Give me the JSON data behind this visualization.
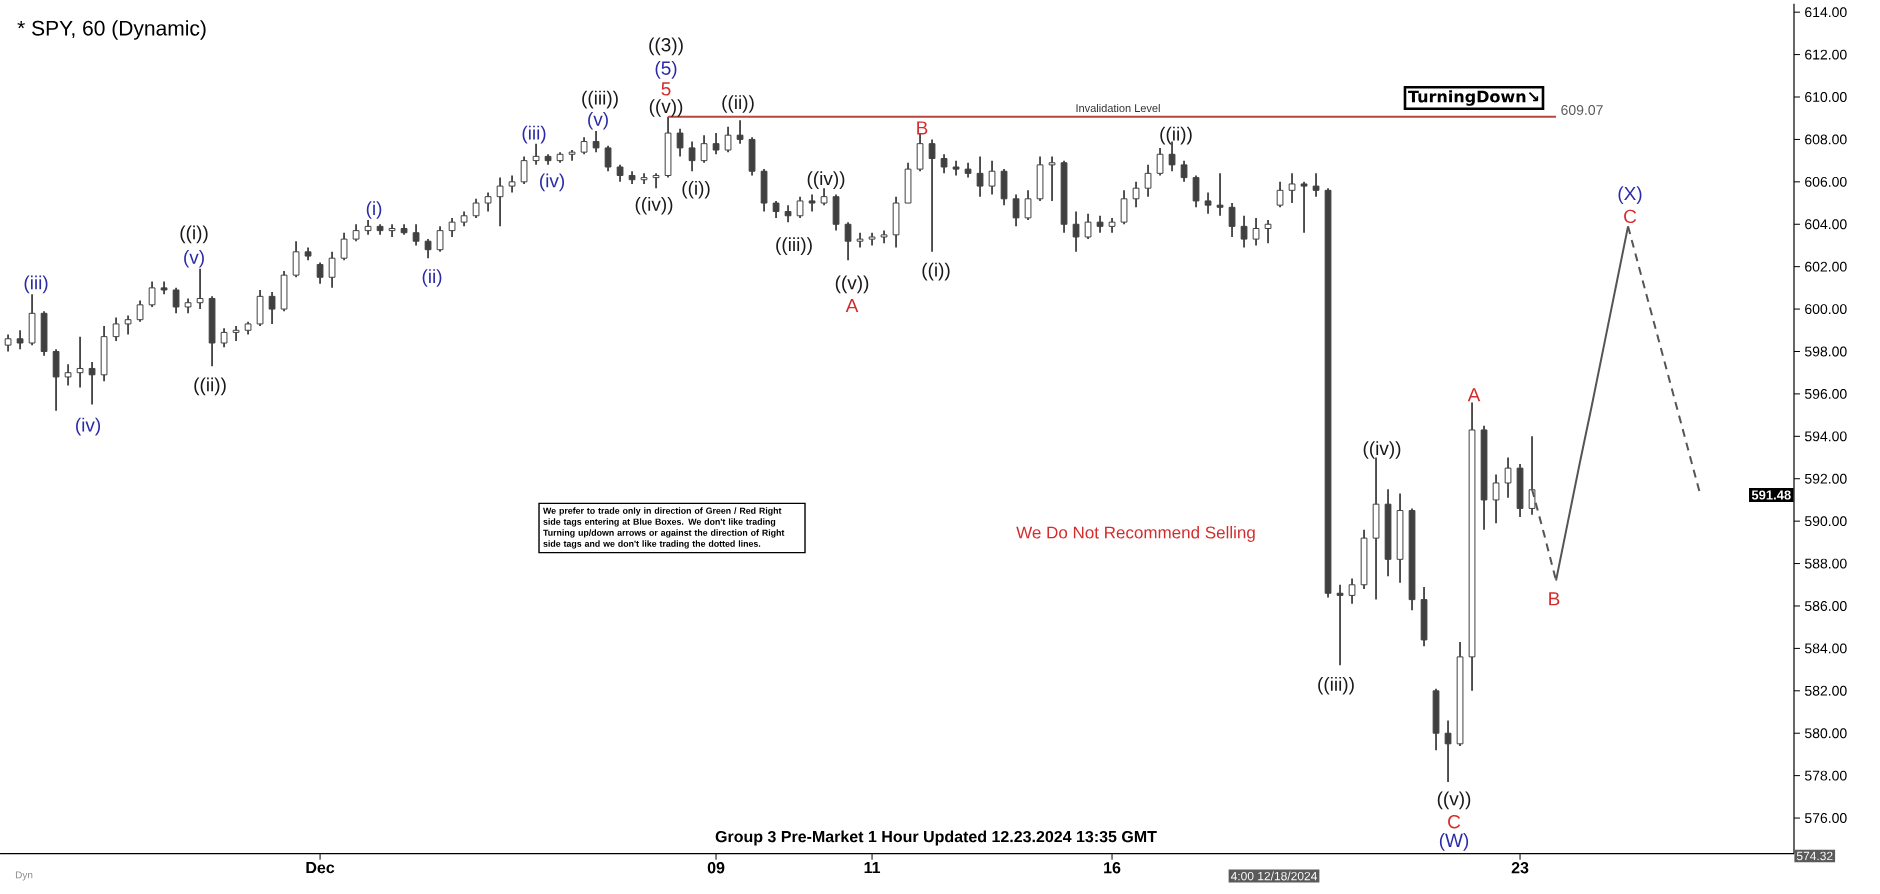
{
  "chart_data": {
    "type": "candlestick",
    "title": "* SPY, 60 (Dynamic)",
    "categories": [
      null,
      null,
      null,
      null,
      null,
      null,
      null,
      null,
      null,
      null,
      null,
      null,
      null,
      null,
      null,
      null,
      null,
      null,
      null,
      null,
      null,
      null,
      null,
      null,
      null,
      null,
      "Dec",
      null,
      null,
      null,
      null,
      null,
      null,
      null,
      null,
      null,
      null,
      null,
      null,
      null,
      null,
      null,
      null,
      null,
      null,
      null,
      null,
      null,
      null,
      null,
      null,
      null,
      null,
      null,
      null,
      null,
      null,
      null,
      null,
      "09",
      null,
      null,
      null,
      null,
      null,
      null,
      null,
      null,
      null,
      null,
      null,
      null,
      "11",
      null,
      null,
      null,
      null,
      null,
      null,
      null,
      null,
      null,
      null,
      null,
      null,
      null,
      null,
      null,
      null,
      null,
      null,
      null,
      "16",
      null,
      null,
      null,
      null,
      null,
      null,
      null,
      null,
      null,
      null,
      null,
      null,
      null,
      null,
      null,
      null,
      null,
      null,
      null,
      null,
      null,
      null,
      null,
      null,
      null,
      null,
      null,
      null,
      null,
      null,
      null,
      null,
      null,
      "23",
      null,
      null,
      null,
      null,
      null,
      null,
      null,
      null,
      null,
      null,
      null,
      null,
      null,
      null,
      null,
      null,
      null,
      null,
      null,
      null,
      null,
      null
    ],
    "ohlc": [
      [
        598.3,
        598.8,
        598.0,
        598.6
      ],
      [
        598.6,
        599.0,
        598.1,
        598.4
      ],
      [
        598.4,
        600.7,
        598.3,
        599.8
      ],
      [
        599.8,
        599.9,
        597.8,
        598.0
      ],
      [
        598.0,
        598.1,
        595.2,
        596.8
      ],
      [
        596.8,
        597.4,
        596.4,
        597.0
      ],
      [
        597.0,
        598.7,
        596.3,
        597.2
      ],
      [
        597.2,
        597.5,
        595.5,
        596.9
      ],
      [
        596.9,
        599.2,
        596.6,
        598.7
      ],
      [
        598.7,
        599.6,
        598.5,
        599.3
      ],
      [
        599.3,
        599.7,
        598.8,
        599.5
      ],
      [
        599.5,
        600.4,
        599.4,
        600.2
      ],
      [
        600.2,
        601.3,
        600.1,
        601.0
      ],
      [
        601.0,
        601.3,
        600.7,
        600.9
      ],
      [
        600.9,
        601.0,
        599.8,
        600.1
      ],
      [
        600.1,
        600.5,
        599.8,
        600.3
      ],
      [
        600.3,
        601.9,
        600.0,
        600.5
      ],
      [
        600.5,
        600.6,
        597.3,
        598.4
      ],
      [
        598.4,
        599.1,
        598.2,
        598.9
      ],
      [
        598.9,
        599.2,
        598.5,
        599.0
      ],
      [
        599.0,
        599.4,
        598.8,
        599.3
      ],
      [
        599.3,
        600.9,
        599.2,
        600.6
      ],
      [
        600.6,
        600.8,
        599.3,
        600.0
      ],
      [
        600.0,
        601.8,
        599.9,
        601.6
      ],
      [
        601.6,
        603.2,
        601.5,
        602.7
      ],
      [
        602.7,
        602.9,
        602.3,
        602.5
      ],
      [
        602.1,
        602.2,
        601.2,
        601.5
      ],
      [
        601.5,
        602.7,
        601.0,
        602.4
      ],
      [
        602.4,
        603.6,
        602.3,
        603.3
      ],
      [
        603.3,
        604.0,
        603.2,
        603.7
      ],
      [
        603.7,
        604.2,
        603.5,
        603.9
      ],
      [
        603.9,
        604.0,
        603.5,
        603.7
      ],
      [
        603.7,
        604.0,
        603.4,
        603.8
      ],
      [
        603.8,
        604.0,
        603.5,
        603.6
      ],
      [
        603.6,
        604.0,
        603.0,
        603.2
      ],
      [
        603.2,
        603.3,
        602.4,
        602.8
      ],
      [
        602.8,
        603.9,
        602.7,
        603.7
      ],
      [
        603.7,
        604.3,
        603.4,
        604.1
      ],
      [
        604.1,
        604.6,
        603.9,
        604.4
      ],
      [
        604.4,
        605.2,
        604.3,
        605.0
      ],
      [
        605.0,
        605.5,
        604.6,
        605.3
      ],
      [
        605.3,
        606.2,
        603.9,
        605.8
      ],
      [
        605.8,
        606.3,
        605.5,
        606.0
      ],
      [
        606.0,
        607.2,
        605.9,
        607.0
      ],
      [
        607.0,
        607.8,
        606.8,
        607.2
      ],
      [
        607.2,
        607.3,
        606.8,
        607.0
      ],
      [
        607.0,
        607.4,
        606.9,
        607.3
      ],
      [
        607.3,
        607.5,
        607.0,
        607.4
      ],
      [
        607.4,
        608.1,
        607.3,
        607.9
      ],
      [
        607.9,
        608.4,
        607.4,
        607.6
      ],
      [
        607.6,
        607.7,
        606.5,
        606.7
      ],
      [
        606.7,
        606.8,
        606.0,
        606.3
      ],
      [
        606.3,
        606.5,
        605.9,
        606.1
      ],
      [
        606.1,
        606.4,
        605.9,
        606.2
      ],
      [
        606.2,
        606.4,
        605.7,
        606.3
      ],
      [
        606.3,
        609.07,
        606.2,
        608.3
      ],
      [
        608.3,
        608.5,
        607.2,
        607.6
      ],
      [
        607.6,
        607.9,
        606.5,
        607.0
      ],
      [
        607.0,
        608.2,
        606.9,
        607.8
      ],
      [
        607.8,
        608.3,
        607.3,
        607.5
      ],
      [
        607.5,
        608.6,
        607.4,
        608.2
      ],
      [
        608.2,
        608.9,
        607.8,
        608.0
      ],
      [
        608.0,
        608.1,
        606.3,
        606.5
      ],
      [
        606.5,
        606.6,
        604.6,
        605.0
      ],
      [
        605.0,
        605.1,
        604.3,
        604.6
      ],
      [
        604.6,
        604.9,
        604.1,
        604.4
      ],
      [
        604.4,
        605.3,
        604.3,
        605.1
      ],
      [
        605.1,
        605.4,
        604.6,
        605.0
      ],
      [
        605.0,
        605.7,
        604.9,
        605.3
      ],
      [
        605.3,
        605.4,
        603.7,
        604.0
      ],
      [
        604.0,
        604.1,
        602.3,
        603.2
      ],
      [
        603.2,
        603.6,
        602.9,
        603.3
      ],
      [
        603.3,
        603.6,
        603.0,
        603.4
      ],
      [
        603.4,
        603.7,
        603.1,
        603.5
      ],
      [
        603.5,
        605.3,
        602.9,
        605.0
      ],
      [
        605.0,
        606.9,
        605.0,
        606.6
      ],
      [
        606.6,
        608.3,
        606.5,
        607.8
      ],
      [
        607.8,
        608.0,
        602.7,
        607.1
      ],
      [
        607.1,
        607.3,
        606.4,
        606.7
      ],
      [
        606.7,
        607.0,
        606.3,
        606.6
      ],
      [
        606.6,
        606.9,
        606.2,
        606.4
      ],
      [
        606.4,
        607.2,
        605.3,
        605.8
      ],
      [
        605.8,
        607.0,
        605.4,
        606.5
      ],
      [
        606.5,
        606.6,
        604.9,
        605.2
      ],
      [
        605.2,
        605.4,
        603.9,
        604.3
      ],
      [
        604.3,
        605.6,
        604.2,
        605.2
      ],
      [
        605.2,
        607.2,
        605.1,
        606.8
      ],
      [
        606.8,
        607.2,
        605.1,
        606.9
      ],
      [
        606.9,
        607.0,
        603.6,
        604.0
      ],
      [
        604.0,
        604.6,
        602.7,
        603.4
      ],
      [
        603.4,
        604.5,
        603.3,
        604.1
      ],
      [
        604.1,
        604.4,
        603.6,
        603.9
      ],
      [
        603.9,
        604.3,
        603.6,
        604.1
      ],
      [
        604.1,
        605.6,
        604.0,
        605.2
      ],
      [
        605.2,
        606.0,
        604.8,
        605.7
      ],
      [
        605.7,
        606.8,
        605.3,
        606.4
      ],
      [
        606.4,
        607.6,
        606.3,
        607.3
      ],
      [
        607.3,
        607.9,
        606.5,
        606.8
      ],
      [
        606.8,
        607.0,
        606.0,
        606.2
      ],
      [
        606.2,
        606.3,
        604.8,
        605.1
      ],
      [
        605.1,
        605.5,
        604.5,
        604.9
      ],
      [
        604.9,
        606.4,
        604.4,
        604.8
      ],
      [
        604.8,
        605.0,
        603.4,
        603.9
      ],
      [
        603.9,
        604.4,
        602.9,
        603.3
      ],
      [
        603.3,
        604.3,
        603.0,
        603.8
      ],
      [
        603.8,
        604.2,
        603.1,
        604.0
      ],
      [
        604.9,
        606.0,
        604.8,
        605.6
      ],
      [
        605.6,
        606.4,
        605.0,
        605.9
      ],
      [
        605.9,
        606.0,
        603.6,
        605.8
      ],
      [
        605.8,
        606.4,
        605.3,
        605.6
      ],
      [
        605.6,
        605.7,
        586.4,
        586.6
      ],
      [
        586.6,
        587.0,
        583.2,
        586.5
      ],
      [
        586.5,
        587.3,
        586.1,
        587.0
      ],
      [
        587.0,
        589.6,
        586.8,
        589.2
      ],
      [
        589.2,
        593.0,
        586.3,
        590.8
      ],
      [
        590.8,
        591.5,
        587.4,
        588.2
      ],
      [
        588.2,
        591.3,
        587.1,
        590.5
      ],
      [
        590.5,
        590.6,
        585.8,
        586.3
      ],
      [
        586.3,
        586.9,
        584.1,
        584.4
      ],
      [
        582.0,
        582.1,
        579.2,
        580.0
      ],
      [
        580.0,
        580.6,
        577.7,
        579.5
      ],
      [
        579.5,
        584.3,
        579.4,
        583.6
      ],
      [
        583.6,
        595.6,
        582.0,
        594.3
      ],
      [
        594.3,
        594.5,
        589.6,
        591.0
      ],
      [
        591.0,
        592.2,
        589.9,
        591.8
      ],
      [
        591.8,
        593.0,
        591.1,
        592.5
      ],
      [
        592.5,
        592.7,
        590.2,
        590.6
      ],
      [
        590.6,
        594.0,
        590.3,
        591.48
      ],
      null,
      null,
      null,
      null,
      null,
      null,
      null,
      null,
      null,
      null,
      null,
      null,
      null,
      null,
      null,
      null,
      null,
      null,
      null,
      null,
      null
    ],
    "color": "#404040",
    "series": [
      {
        "type": "line",
        "color": "#b5473f",
        "line_style": "solid",
        "values": [
          null,
          null,
          null,
          null,
          null,
          null,
          null,
          null,
          null,
          null,
          null,
          null,
          null,
          null,
          null,
          null,
          null,
          null,
          null,
          null,
          null,
          null,
          null,
          null,
          null,
          null,
          null,
          null,
          null,
          null,
          null,
          null,
          null,
          null,
          null,
          null,
          null,
          null,
          null,
          null,
          null,
          null,
          null,
          null,
          null,
          null,
          null,
          null,
          null,
          null,
          null,
          null,
          null,
          null,
          null,
          609.07,
          609.07,
          609.07,
          609.07,
          609.07,
          609.07,
          609.07,
          609.07,
          609.07,
          609.07,
          609.07,
          609.07,
          609.07,
          609.07,
          609.07,
          609.07,
          609.07,
          609.07,
          609.07,
          609.07,
          609.07,
          609.07,
          609.07,
          609.07,
          609.07,
          609.07,
          609.07,
          609.07,
          609.07,
          609.07,
          609.07,
          609.07,
          609.07,
          609.07,
          609.07,
          609.07,
          609.07,
          609.07,
          609.07,
          609.07,
          609.07,
          609.07,
          609.07,
          609.07,
          609.07,
          609.07,
          609.07,
          609.07,
          609.07,
          609.07,
          609.07,
          609.07,
          609.07,
          609.07,
          609.07,
          609.07,
          609.07,
          609.07,
          609.07,
          609.07,
          609.07,
          609.07,
          609.07,
          609.07,
          609.07,
          609.07,
          609.07,
          609.07,
          609.07,
          609.07,
          609.07,
          609.07,
          609.07,
          609.07,
          609.07,
          null,
          null,
          null,
          null,
          null,
          null,
          null,
          null,
          null,
          null,
          null,
          null,
          null,
          null,
          null,
          null,
          null,
          null,
          null
        ]
      },
      {
        "type": "line",
        "color": "#555555",
        "line_style": "dashed",
        "values": [
          null,
          null,
          null,
          null,
          null,
          null,
          null,
          null,
          null,
          null,
          null,
          null,
          null,
          null,
          null,
          null,
          null,
          null,
          null,
          null,
          null,
          null,
          null,
          null,
          null,
          null,
          null,
          null,
          null,
          null,
          null,
          null,
          null,
          null,
          null,
          null,
          null,
          null,
          null,
          null,
          null,
          null,
          null,
          null,
          null,
          null,
          null,
          null,
          null,
          null,
          null,
          null,
          null,
          null,
          null,
          null,
          null,
          null,
          null,
          null,
          null,
          null,
          null,
          null,
          null,
          null,
          null,
          null,
          null,
          null,
          null,
          null,
          null,
          null,
          null,
          null,
          null,
          null,
          null,
          null,
          null,
          null,
          null,
          null,
          null,
          null,
          null,
          null,
          null,
          null,
          null,
          null,
          null,
          null,
          null,
          null,
          null,
          null,
          null,
          null,
          null,
          null,
          null,
          null,
          null,
          null,
          null,
          null,
          null,
          null,
          null,
          null,
          null,
          null,
          null,
          null,
          null,
          null,
          null,
          null,
          null,
          null,
          null,
          null,
          null,
          null,
          null,
          591.5,
          589.4,
          587.2,
          null,
          null,
          null,
          null,
          null,
          null,
          null,
          null,
          null,
          null,
          null,
          null,
          null,
          null,
          null,
          null,
          null,
          null,
          null
        ]
      },
      {
        "type": "line",
        "color": "#555555",
        "line_style": "solid",
        "values": [
          null,
          null,
          null,
          null,
          null,
          null,
          null,
          null,
          null,
          null,
          null,
          null,
          null,
          null,
          null,
          null,
          null,
          null,
          null,
          null,
          null,
          null,
          null,
          null,
          null,
          null,
          null,
          null,
          null,
          null,
          null,
          null,
          null,
          null,
          null,
          null,
          null,
          null,
          null,
          null,
          null,
          null,
          null,
          null,
          null,
          null,
          null,
          null,
          null,
          null,
          null,
          null,
          null,
          null,
          null,
          null,
          null,
          null,
          null,
          null,
          null,
          null,
          null,
          null,
          null,
          null,
          null,
          null,
          null,
          null,
          null,
          null,
          null,
          null,
          null,
          null,
          null,
          null,
          null,
          null,
          null,
          null,
          null,
          null,
          null,
          null,
          null,
          null,
          null,
          null,
          null,
          null,
          null,
          null,
          null,
          null,
          null,
          null,
          null,
          null,
          null,
          null,
          null,
          null,
          null,
          null,
          null,
          null,
          null,
          null,
          null,
          null,
          null,
          null,
          null,
          null,
          null,
          null,
          null,
          null,
          null,
          null,
          null,
          null,
          null,
          null,
          null,
          null,
          null,
          587.2,
          590.0,
          592.8,
          595.5,
          598.3,
          601.1,
          603.9,
          null,
          null,
          null,
          null,
          null,
          null,
          null,
          null,
          null,
          null,
          null,
          null,
          null
        ]
      },
      {
        "type": "line",
        "color": "#555555",
        "line_style": "dashed",
        "values": [
          null,
          null,
          null,
          null,
          null,
          null,
          null,
          null,
          null,
          null,
          null,
          null,
          null,
          null,
          null,
          null,
          null,
          null,
          null,
          null,
          null,
          null,
          null,
          null,
          null,
          null,
          null,
          null,
          null,
          null,
          null,
          null,
          null,
          null,
          null,
          null,
          null,
          null,
          null,
          null,
          null,
          null,
          null,
          null,
          null,
          null,
          null,
          null,
          null,
          null,
          null,
          null,
          null,
          null,
          null,
          null,
          null,
          null,
          null,
          null,
          null,
          null,
          null,
          null,
          null,
          null,
          null,
          null,
          null,
          null,
          null,
          null,
          null,
          null,
          null,
          null,
          null,
          null,
          null,
          null,
          null,
          null,
          null,
          null,
          null,
          null,
          null,
          null,
          null,
          null,
          null,
          null,
          null,
          null,
          null,
          null,
          null,
          null,
          null,
          null,
          null,
          null,
          null,
          null,
          null,
          null,
          null,
          null,
          null,
          null,
          null,
          null,
          null,
          null,
          null,
          null,
          null,
          null,
          null,
          null,
          null,
          null,
          null,
          null,
          null,
          null,
          null,
          null,
          null,
          null,
          null,
          null,
          null,
          null,
          null,
          603.9,
          601.8,
          599.7,
          597.6,
          595.5,
          593.4,
          591.3,
          null,
          null,
          null,
          null,
          null,
          null,
          null
        ]
      }
    ],
    "ylim": [
      574.32,
      614.4
    ],
    "yticks": [
      {
        "value": 576,
        "label": "576.00"
      },
      {
        "value": 578,
        "label": "578.00"
      },
      {
        "value": 580,
        "label": "580.00"
      },
      {
        "value": 582,
        "label": "582.00"
      },
      {
        "value": 584,
        "label": "584.00"
      },
      {
        "value": 586,
        "label": "586.00"
      },
      {
        "value": 588,
        "label": "588.00"
      },
      {
        "value": 590,
        "label": "590.00"
      },
      {
        "value": 592,
        "label": "592.00"
      },
      {
        "value": 594,
        "label": "594.00"
      },
      {
        "value": 596,
        "label": "596.00"
      },
      {
        "value": 598,
        "label": "598.00"
      },
      {
        "value": 600,
        "label": "600.00"
      },
      {
        "value": 602,
        "label": "602.00"
      },
      {
        "value": 604,
        "label": "604.00"
      },
      {
        "value": 606,
        "label": "606.00"
      },
      {
        "value": 608,
        "label": "608.00"
      },
      {
        "value": 610,
        "label": "610.00"
      },
      {
        "value": 612,
        "label": "612.00"
      },
      {
        "value": 614,
        "label": "614.00"
      }
    ],
    "annotations": [
      "We prefer to trade only in direction of Green / Red Right side tags entering at Blue Boxes. We don't like trading Turning up/down arrows or against the direction of Right side tags and we don't like trading the dotted lines.",
      "We Do Not Recommend Selling",
      "Group 3 Pre-Market 1 Hour Updated 12.23.2024 13:35 GMT",
      "TurningDown↘",
      "4:00 12/18/2024",
      "Dyn",
      "Invalidation Level",
      "609.07",
      "591.48",
      "574.32",
      "(iii)",
      "(iv)",
      "((i))",
      "(v)",
      "((ii))",
      "(i)",
      "(ii)",
      "(iii)",
      "(iv)",
      "((iii))",
      "(v)",
      "((3))",
      "(5)",
      "5",
      "((v))",
      "((iv))",
      "((i))",
      "((ii))",
      "((iii))",
      "((iv))",
      "((v))",
      "A",
      "B",
      "((i))",
      "((ii))",
      "(X)",
      "C",
      "A",
      "((iv))",
      "((iii))",
      "B",
      "((v))",
      "C",
      "(W)"
    ]
  }
}
